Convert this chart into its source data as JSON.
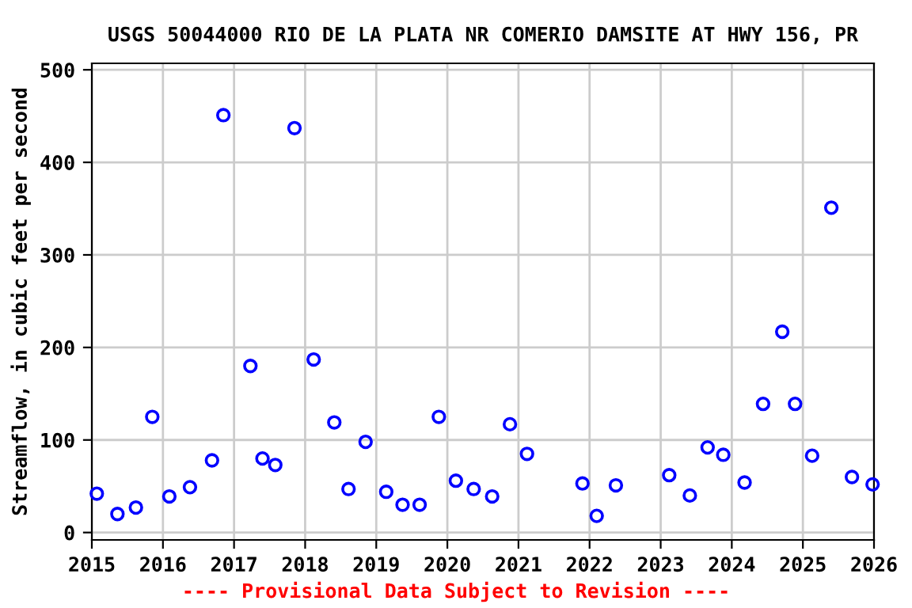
{
  "chart_data": {
    "type": "scatter",
    "title": "USGS 50044000 RIO DE LA PLATA NR COMERIO DAMSITE AT HWY 156, PR",
    "ylabel": "Streamflow, in cubic feet per second",
    "annotations": [
      "---- Provisional Data Subject to Revision ----"
    ],
    "x": [
      2015.07,
      2015.36,
      2015.62,
      2015.85,
      2016.09,
      2016.38,
      2016.69,
      2016.85,
      2017.23,
      2017.4,
      2017.58,
      2017.85,
      2018.12,
      2018.41,
      2018.61,
      2018.85,
      2019.14,
      2019.37,
      2019.61,
      2019.88,
      2020.12,
      2020.37,
      2020.63,
      2020.88,
      2021.12,
      2021.9,
      2022.1,
      2022.37,
      2023.12,
      2023.41,
      2023.66,
      2023.88,
      2024.18,
      2024.44,
      2024.71,
      2024.89,
      2025.13,
      2025.4,
      2025.69,
      2025.98
    ],
    "series": [
      {
        "color": "#0000ff",
        "values": [
          42,
          20,
          27,
          125,
          39,
          49,
          78,
          451,
          180,
          80,
          73,
          437,
          187,
          119,
          47,
          98,
          44,
          30,
          30,
          125,
          56,
          47,
          39,
          117,
          85,
          53,
          18,
          51,
          62,
          40,
          92,
          84,
          54,
          139,
          217,
          139,
          83,
          351,
          60,
          52
        ]
      }
    ],
    "xlim": [
      2015,
      2026
    ],
    "xticks": [
      2015,
      2016,
      2017,
      2018,
      2019,
      2020,
      2021,
      2022,
      2023,
      2024,
      2025,
      2026
    ],
    "ylim": [
      -8,
      507
    ],
    "yticks": [
      0,
      100,
      200,
      300,
      400,
      500
    ],
    "grid": true,
    "marker": "circle"
  }
}
